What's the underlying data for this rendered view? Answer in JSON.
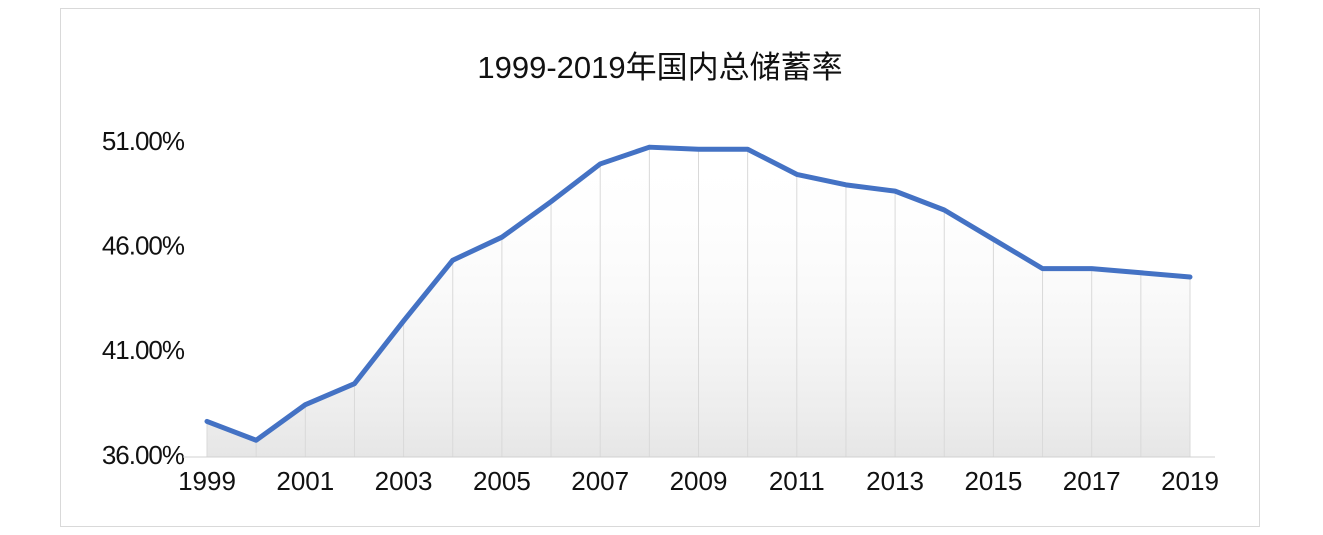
{
  "chart_data": {
    "type": "line",
    "title": "1999-2019年国内总储蓄率",
    "x": [
      1999,
      2000,
      2001,
      2002,
      2003,
      2004,
      2005,
      2006,
      2007,
      2008,
      2009,
      2010,
      2011,
      2012,
      2013,
      2014,
      2015,
      2016,
      2017,
      2018,
      2019
    ],
    "values": [
      37.7,
      36.8,
      38.5,
      39.5,
      42.5,
      45.4,
      46.5,
      48.2,
      50.0,
      50.8,
      50.7,
      50.7,
      49.5,
      49.0,
      48.7,
      47.8,
      46.4,
      45.0,
      45.0,
      44.8,
      44.6
    ],
    "color": "#4472c4",
    "xlim": [
      1999,
      2019
    ],
    "xticks": [
      1999,
      2001,
      2003,
      2005,
      2007,
      2009,
      2011,
      2013,
      2015,
      2017,
      2019
    ],
    "ylim": [
      36,
      51
    ],
    "yticks": [
      {
        "value": 36,
        "label": "36.00%"
      },
      {
        "value": 41,
        "label": "41.00%"
      },
      {
        "value": 46,
        "label": "46.00%"
      },
      {
        "value": 51,
        "label": "51.00%"
      }
    ]
  }
}
